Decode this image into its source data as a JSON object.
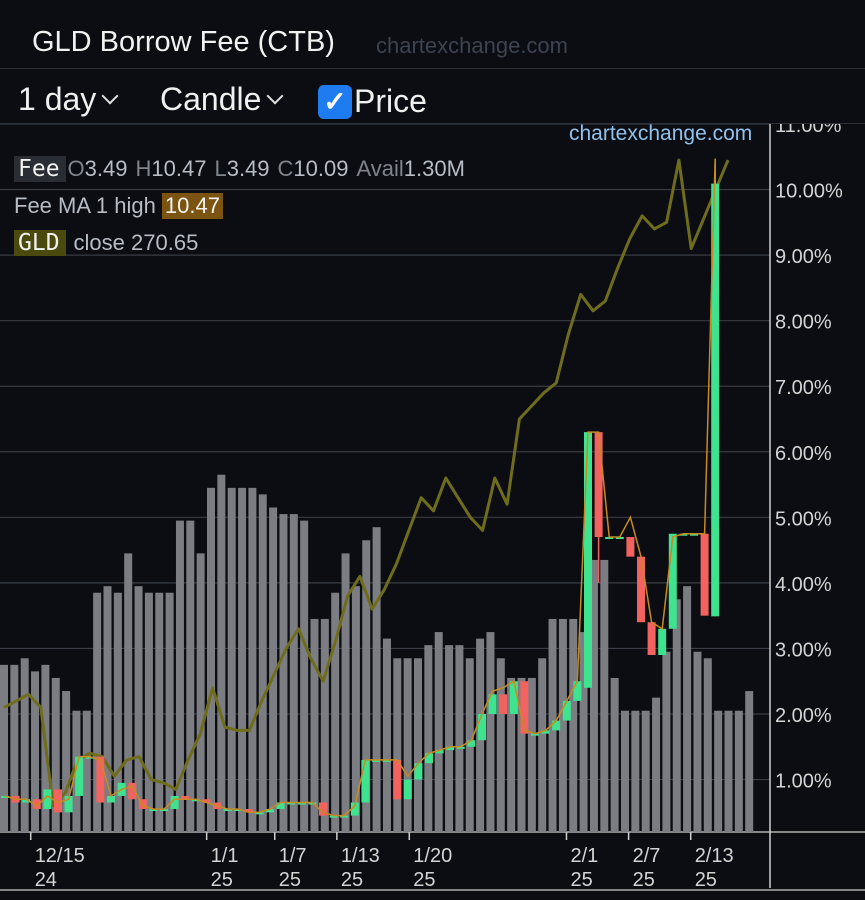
{
  "header": {
    "title": "GLD Borrow Fee (CTB)",
    "watermark": "chartexchange.com"
  },
  "toolbar": {
    "interval": "1 day",
    "chart_style": "Candle",
    "price_label": "Price",
    "price_checked": true
  },
  "legend": {
    "fee_tag": "Fee",
    "o_label": "O",
    "o_value": "3.49",
    "h_label": "H",
    "h_value": "10.47",
    "l_label": "L",
    "l_value": "3.49",
    "c_label": "C",
    "c_value": "10.09",
    "avail_label": "Avail",
    "avail_value": "1.30M",
    "ma_label": "Fee MA 1 high",
    "ma_value": "10.47",
    "gld_tag": "GLD",
    "gld_close": "close 270.65"
  },
  "chart_watermark": "chartexchange.com",
  "colors": {
    "up": "#3ee28f",
    "down": "#f2635f",
    "volume": "#7b7d82",
    "price_line": "#6f6d1c",
    "ma_line": "#c98a1f",
    "grid": "#3a3d45",
    "axis_text": "#d4d4d4"
  },
  "chart_data": {
    "type": "candlestick",
    "y_axis": {
      "min": 0.2,
      "max": 11.0,
      "ticks": [
        "1.00%",
        "2.00%",
        "3.00%",
        "4.00%",
        "5.00%",
        "6.00%",
        "7.00%",
        "8.00%",
        "9.00%",
        "10.00%",
        "11.00%"
      ],
      "position": "right"
    },
    "x_axis": {
      "ticks": [
        {
          "i": 2,
          "label": "12/15",
          "sub": "24"
        },
        {
          "i": 19,
          "label": "1/1",
          "sub": "25"
        },
        {
          "i": 25,
          "label": "1/7",
          "sub": "25"
        },
        {
          "i": 31,
          "label": "1/13",
          "sub": "25"
        },
        {
          "i": 38,
          "label": "1/20",
          "sub": "25"
        },
        {
          "i": 50,
          "label": "2/1",
          "sub": "25"
        },
        {
          "i": 56,
          "label": "2/7",
          "sub": "25"
        },
        {
          "i": 62,
          "label": "2/13",
          "sub": "25"
        }
      ]
    },
    "candles": [
      {
        "o": 0.75,
        "c": 0.75
      },
      {
        "o": 0.75,
        "c": 0.65
      },
      {
        "o": 0.65,
        "c": 0.7
      },
      {
        "o": 0.7,
        "c": 0.55
      },
      {
        "o": 0.55,
        "c": 0.85
      },
      {
        "o": 0.85,
        "c": 0.5
      },
      {
        "o": 0.5,
        "c": 0.75
      },
      {
        "o": 0.75,
        "c": 1.35
      },
      {
        "o": 1.35,
        "c": 1.35
      },
      {
        "o": 1.35,
        "c": 0.65
      },
      {
        "o": 0.65,
        "c": 0.75
      },
      {
        "o": 0.75,
        "c": 0.95
      },
      {
        "o": 0.95,
        "c": 0.7
      },
      {
        "o": 0.7,
        "c": 0.55
      },
      {
        "o": 0.55,
        "c": 0.55
      },
      {
        "o": 0.55,
        "c": 0.55
      },
      {
        "o": 0.55,
        "c": 0.75
      },
      {
        "o": 0.75,
        "c": 0.7
      },
      {
        "o": 0.7,
        "c": 0.7
      },
      {
        "o": 0.7,
        "c": 0.65
      },
      {
        "o": 0.65,
        "c": 0.55
      },
      {
        "o": 0.55,
        "c": 0.55
      },
      {
        "o": 0.55,
        "c": 0.55
      },
      {
        "o": 0.55,
        "c": 0.5
      },
      {
        "o": 0.5,
        "c": 0.5
      },
      {
        "o": 0.5,
        "c": 0.55
      },
      {
        "o": 0.55,
        "c": 0.65
      },
      {
        "o": 0.65,
        "c": 0.65
      },
      {
        "o": 0.65,
        "c": 0.65
      },
      {
        "o": 0.65,
        "c": 0.65
      },
      {
        "o": 0.65,
        "c": 0.45
      },
      {
        "o": 0.45,
        "c": 0.45
      },
      {
        "o": 0.45,
        "c": 0.45
      },
      {
        "o": 0.45,
        "c": 0.65
      },
      {
        "o": 0.65,
        "c": 1.3
      },
      {
        "o": 1.3,
        "c": 1.3
      },
      {
        "o": 1.3,
        "c": 1.3
      },
      {
        "o": 1.3,
        "c": 0.7
      },
      {
        "o": 0.7,
        "c": 1.0
      },
      {
        "o": 1.0,
        "c": 1.25
      },
      {
        "o": 1.25,
        "c": 1.4
      },
      {
        "o": 1.4,
        "c": 1.45
      },
      {
        "o": 1.45,
        "c": 1.5
      },
      {
        "o": 1.5,
        "c": 1.5
      },
      {
        "o": 1.5,
        "c": 1.6
      },
      {
        "o": 1.6,
        "c": 2.0
      },
      {
        "o": 2.0,
        "c": 2.3
      },
      {
        "o": 2.3,
        "c": 2.0
      },
      {
        "o": 2.0,
        "c": 2.5
      },
      {
        "o": 2.5,
        "c": 1.7
      },
      {
        "o": 1.7,
        "c": 1.7
      },
      {
        "o": 1.7,
        "c": 1.75
      },
      {
        "o": 1.75,
        "c": 1.9
      },
      {
        "o": 1.9,
        "c": 2.2
      },
      {
        "o": 2.2,
        "c": 2.5
      },
      {
        "o": 2.4,
        "c": 6.3
      },
      {
        "o": 6.3,
        "c": 4.7,
        "l": 4.0
      },
      {
        "o": 4.7,
        "c": 4.7
      },
      {
        "o": 4.7,
        "c": 4.7
      },
      {
        "o": 4.7,
        "c": 4.4
      },
      {
        "o": 4.4,
        "c": 3.4
      },
      {
        "o": 3.4,
        "c": 2.9
      },
      {
        "o": 2.9,
        "c": 3.3
      },
      {
        "o": 3.3,
        "c": 4.75
      },
      {
        "o": 4.75,
        "c": 4.75
      },
      {
        "o": 4.75,
        "c": 4.75
      },
      {
        "o": 4.75,
        "c": 3.5
      },
      {
        "o": 3.49,
        "c": 10.09,
        "h": 10.47
      }
    ],
    "fee_ma": [
      0.75,
      0.7,
      0.7,
      0.6,
      0.75,
      0.65,
      0.7,
      1.35,
      1.35,
      1.3,
      0.75,
      0.85,
      0.9,
      0.6,
      0.55,
      0.55,
      0.7,
      0.7,
      0.7,
      0.65,
      0.6,
      0.55,
      0.55,
      0.5,
      0.5,
      0.55,
      0.65,
      0.65,
      0.65,
      0.65,
      0.5,
      0.45,
      0.45,
      0.6,
      1.3,
      1.3,
      1.3,
      1.3,
      1.05,
      1.25,
      1.4,
      1.45,
      1.5,
      1.5,
      1.6,
      2.0,
      2.35,
      2.4,
      2.5,
      1.75,
      1.7,
      1.75,
      1.9,
      2.2,
      2.5,
      6.3,
      6.3,
      4.7,
      4.7,
      5.0,
      4.4,
      3.4,
      3.3,
      4.7,
      4.75,
      4.75,
      4.75,
      10.47
    ],
    "price_line": [
      2.1,
      2.2,
      2.3,
      2.1,
      0.6,
      0.8,
      1.3,
      1.4,
      1.35,
      1.05,
      1.3,
      1.35,
      1.0,
      0.95,
      0.85,
      1.3,
      1.7,
      2.4,
      1.8,
      1.75,
      1.75,
      2.2,
      2.6,
      3.0,
      3.3,
      2.85,
      2.5,
      3.1,
      3.8,
      4.1,
      3.6,
      3.9,
      4.3,
      4.8,
      5.3,
      5.1,
      5.6,
      5.3,
      5.0,
      4.8,
      5.6,
      5.2,
      6.5,
      6.7,
      6.9,
      7.05,
      7.8,
      8.4,
      8.15,
      8.3,
      8.8,
      9.25,
      9.6,
      9.4,
      9.5,
      10.45,
      9.1,
      9.55,
      10.0,
      10.45
    ],
    "volume": [
      2.75,
      2.75,
      2.85,
      2.65,
      2.75,
      2.55,
      2.35,
      2.05,
      2.05,
      3.85,
      3.95,
      3.85,
      4.45,
      3.95,
      3.85,
      3.85,
      3.85,
      4.95,
      4.95,
      4.45,
      5.45,
      5.65,
      5.45,
      5.45,
      5.45,
      5.35,
      5.15,
      5.05,
      5.05,
      4.95,
      3.45,
      3.45,
      3.85,
      4.45,
      3.95,
      4.65,
      4.85,
      3.15,
      2.85,
      2.85,
      2.85,
      3.05,
      3.25,
      3.05,
      3.05,
      2.85,
      3.15,
      3.25,
      2.85,
      2.55,
      2.55,
      2.55,
      2.85,
      3.45,
      3.45,
      3.45,
      3.25,
      4.35,
      4.35,
      2.55,
      2.05,
      2.05,
      2.05,
      2.25,
      2.95,
      3.75,
      3.95,
      2.95,
      2.85,
      2.05,
      2.05,
      2.05,
      2.35
    ]
  }
}
